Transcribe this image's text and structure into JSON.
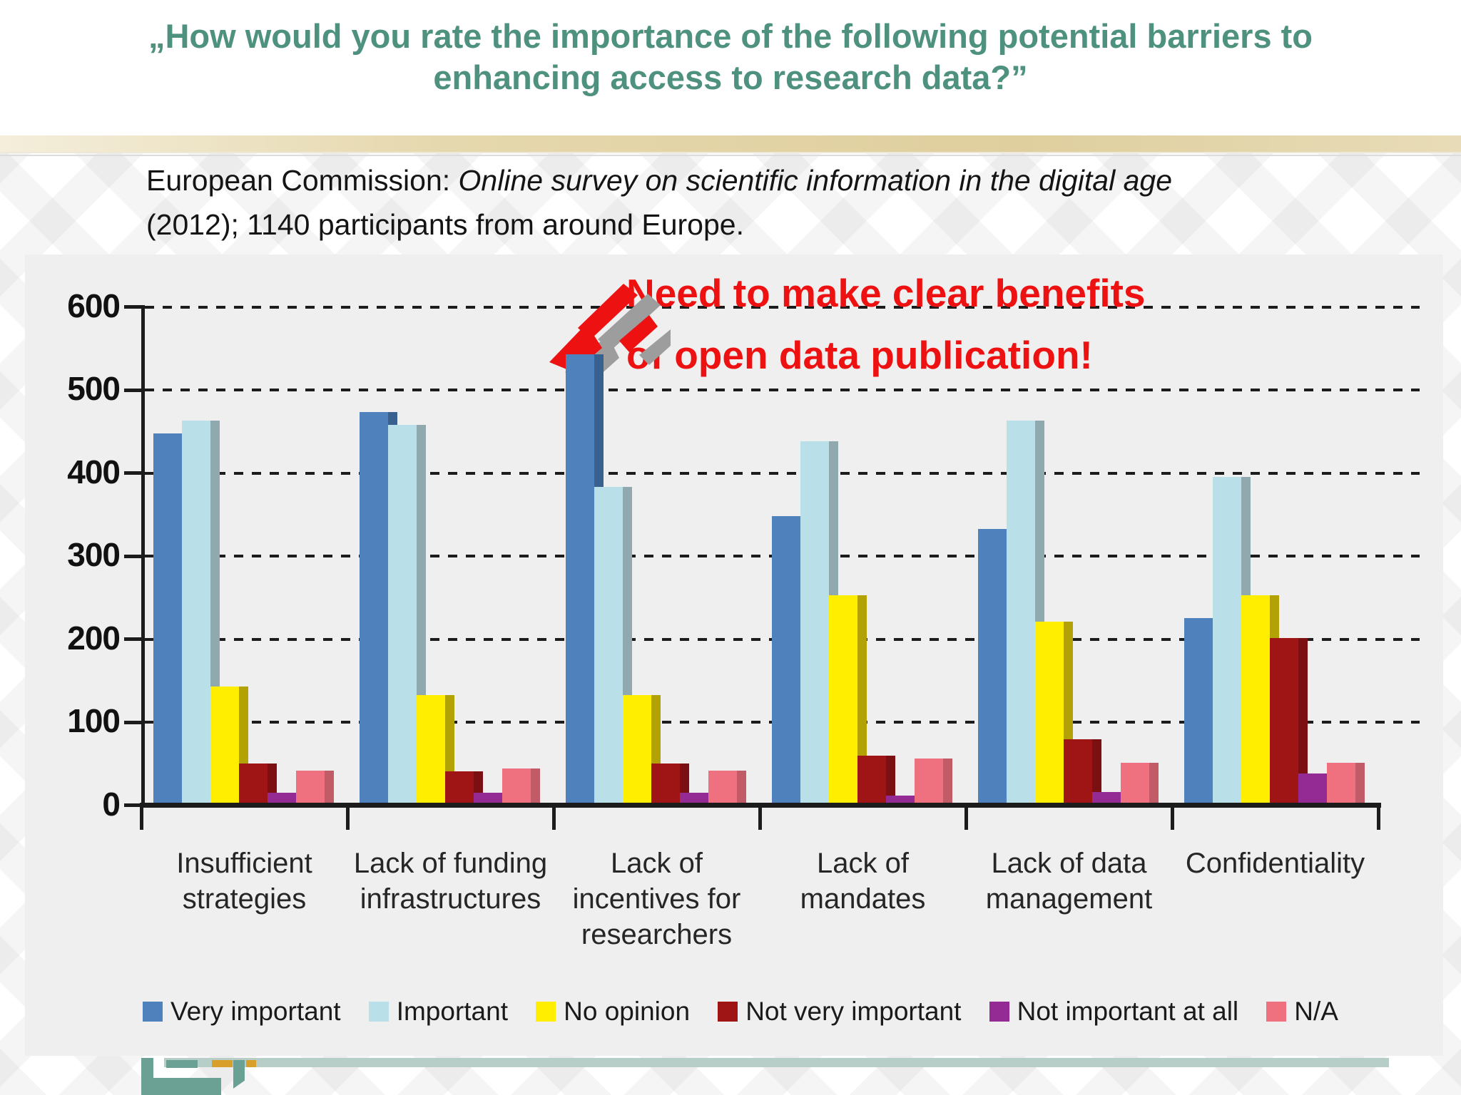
{
  "slide": {
    "title": "„How would you rate the importance of the following potential barriers to enhancing access to research data?”",
    "source_prefix": "European Commission: ",
    "source_italic": "Online survey on scientific information in the digital age",
    "source_suffix": " (2012); 1140 participants from around Europe.",
    "annotation_line1": "Need to make clear benefits",
    "annotation_line2": "of open data publication!",
    "colors": {
      "title": "#4f917f",
      "annotation": "#ee1111",
      "tan_band": "#e3d5ab",
      "panel": "#f0eff0",
      "axis": "#1c1c1c",
      "logo_teal": "#6ba195",
      "logo_gold": "#d99f2b",
      "bottom_strip": "#b6cdc8"
    }
  },
  "chart_data": {
    "type": "bar",
    "title": "",
    "categories": [
      "Insufficient strategies",
      "Lack of funding infrastructures",
      "Lack of incentives for researchers",
      "Lack of mandates",
      "Lack of data management",
      "Confidentiality"
    ],
    "category_lines": [
      [
        "Insufficient",
        "strategies"
      ],
      [
        "Lack of funding",
        "infrastructures"
      ],
      [
        "Lack of",
        "incentives for",
        "researchers"
      ],
      [
        "Lack of",
        "mandates"
      ],
      [
        "Lack of data",
        "management"
      ],
      [
        "Confidentiality"
      ]
    ],
    "series": [
      {
        "name": "Very important",
        "color": "#4f81bd",
        "side": "#38618f",
        "values": [
          445,
          470,
          540,
          345,
          330,
          222
        ]
      },
      {
        "name": "Important",
        "color": "#b9dfe9",
        "side": "#8fa9ae",
        "values": [
          460,
          455,
          380,
          435,
          460,
          392
        ]
      },
      {
        "name": "No opinion",
        "color": "#ffee00",
        "side": "#b2a206",
        "values": [
          140,
          130,
          130,
          250,
          218,
          250
        ]
      },
      {
        "name": "Not very important",
        "color": "#9f1414",
        "side": "#7c0f12",
        "values": [
          47,
          38,
          47,
          57,
          76,
          198
        ]
      },
      {
        "name": "Not important at all",
        "color": "#942a93",
        "side": "#6e2070",
        "values": [
          12,
          12,
          12,
          9,
          13,
          35
        ]
      },
      {
        "name": "N/A",
        "color": "#ef707e",
        "side": "#c25b68",
        "values": [
          39,
          41,
          39,
          53,
          48,
          48
        ]
      }
    ],
    "ylim": [
      0,
      600
    ],
    "yticks": [
      0,
      100,
      200,
      300,
      400,
      500,
      600
    ],
    "grid": "dashed horizontal",
    "legend_position": "bottom",
    "xlabel": "",
    "ylabel": ""
  }
}
